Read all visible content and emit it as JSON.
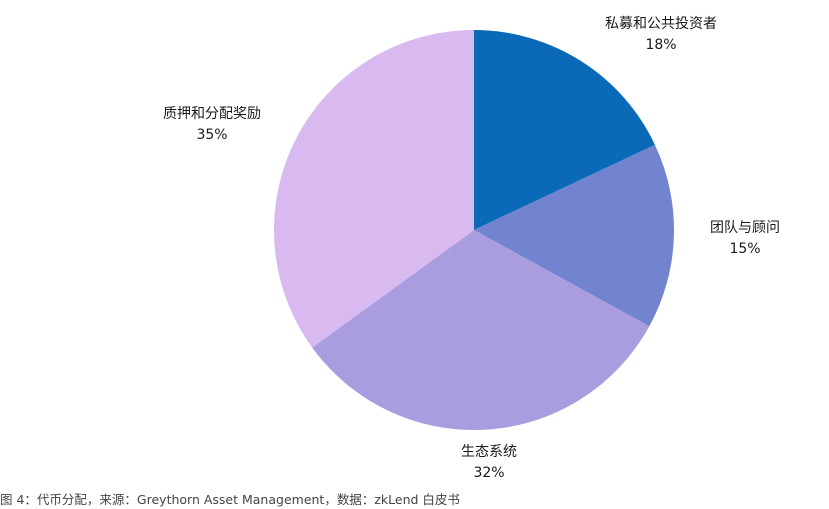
{
  "caption": "图 4：代币分配，来源：Greythorn Asset Management，数据：zkLend 白皮书",
  "chart_data": {
    "type": "pie",
    "slices": [
      {
        "label": "私募和公共投资者",
        "value": 18,
        "value_label": "18%",
        "color": "#0a6ab8"
      },
      {
        "label": "团队与顾问",
        "value": 15,
        "value_label": "15%",
        "color": "#7283cf"
      },
      {
        "label": "生态系统",
        "value": 32,
        "value_label": "32%",
        "color": "#a99de0"
      },
      {
        "label": "质押和分配奖励",
        "value": 35,
        "value_label": "35%",
        "color": "#d8baf0"
      }
    ]
  }
}
